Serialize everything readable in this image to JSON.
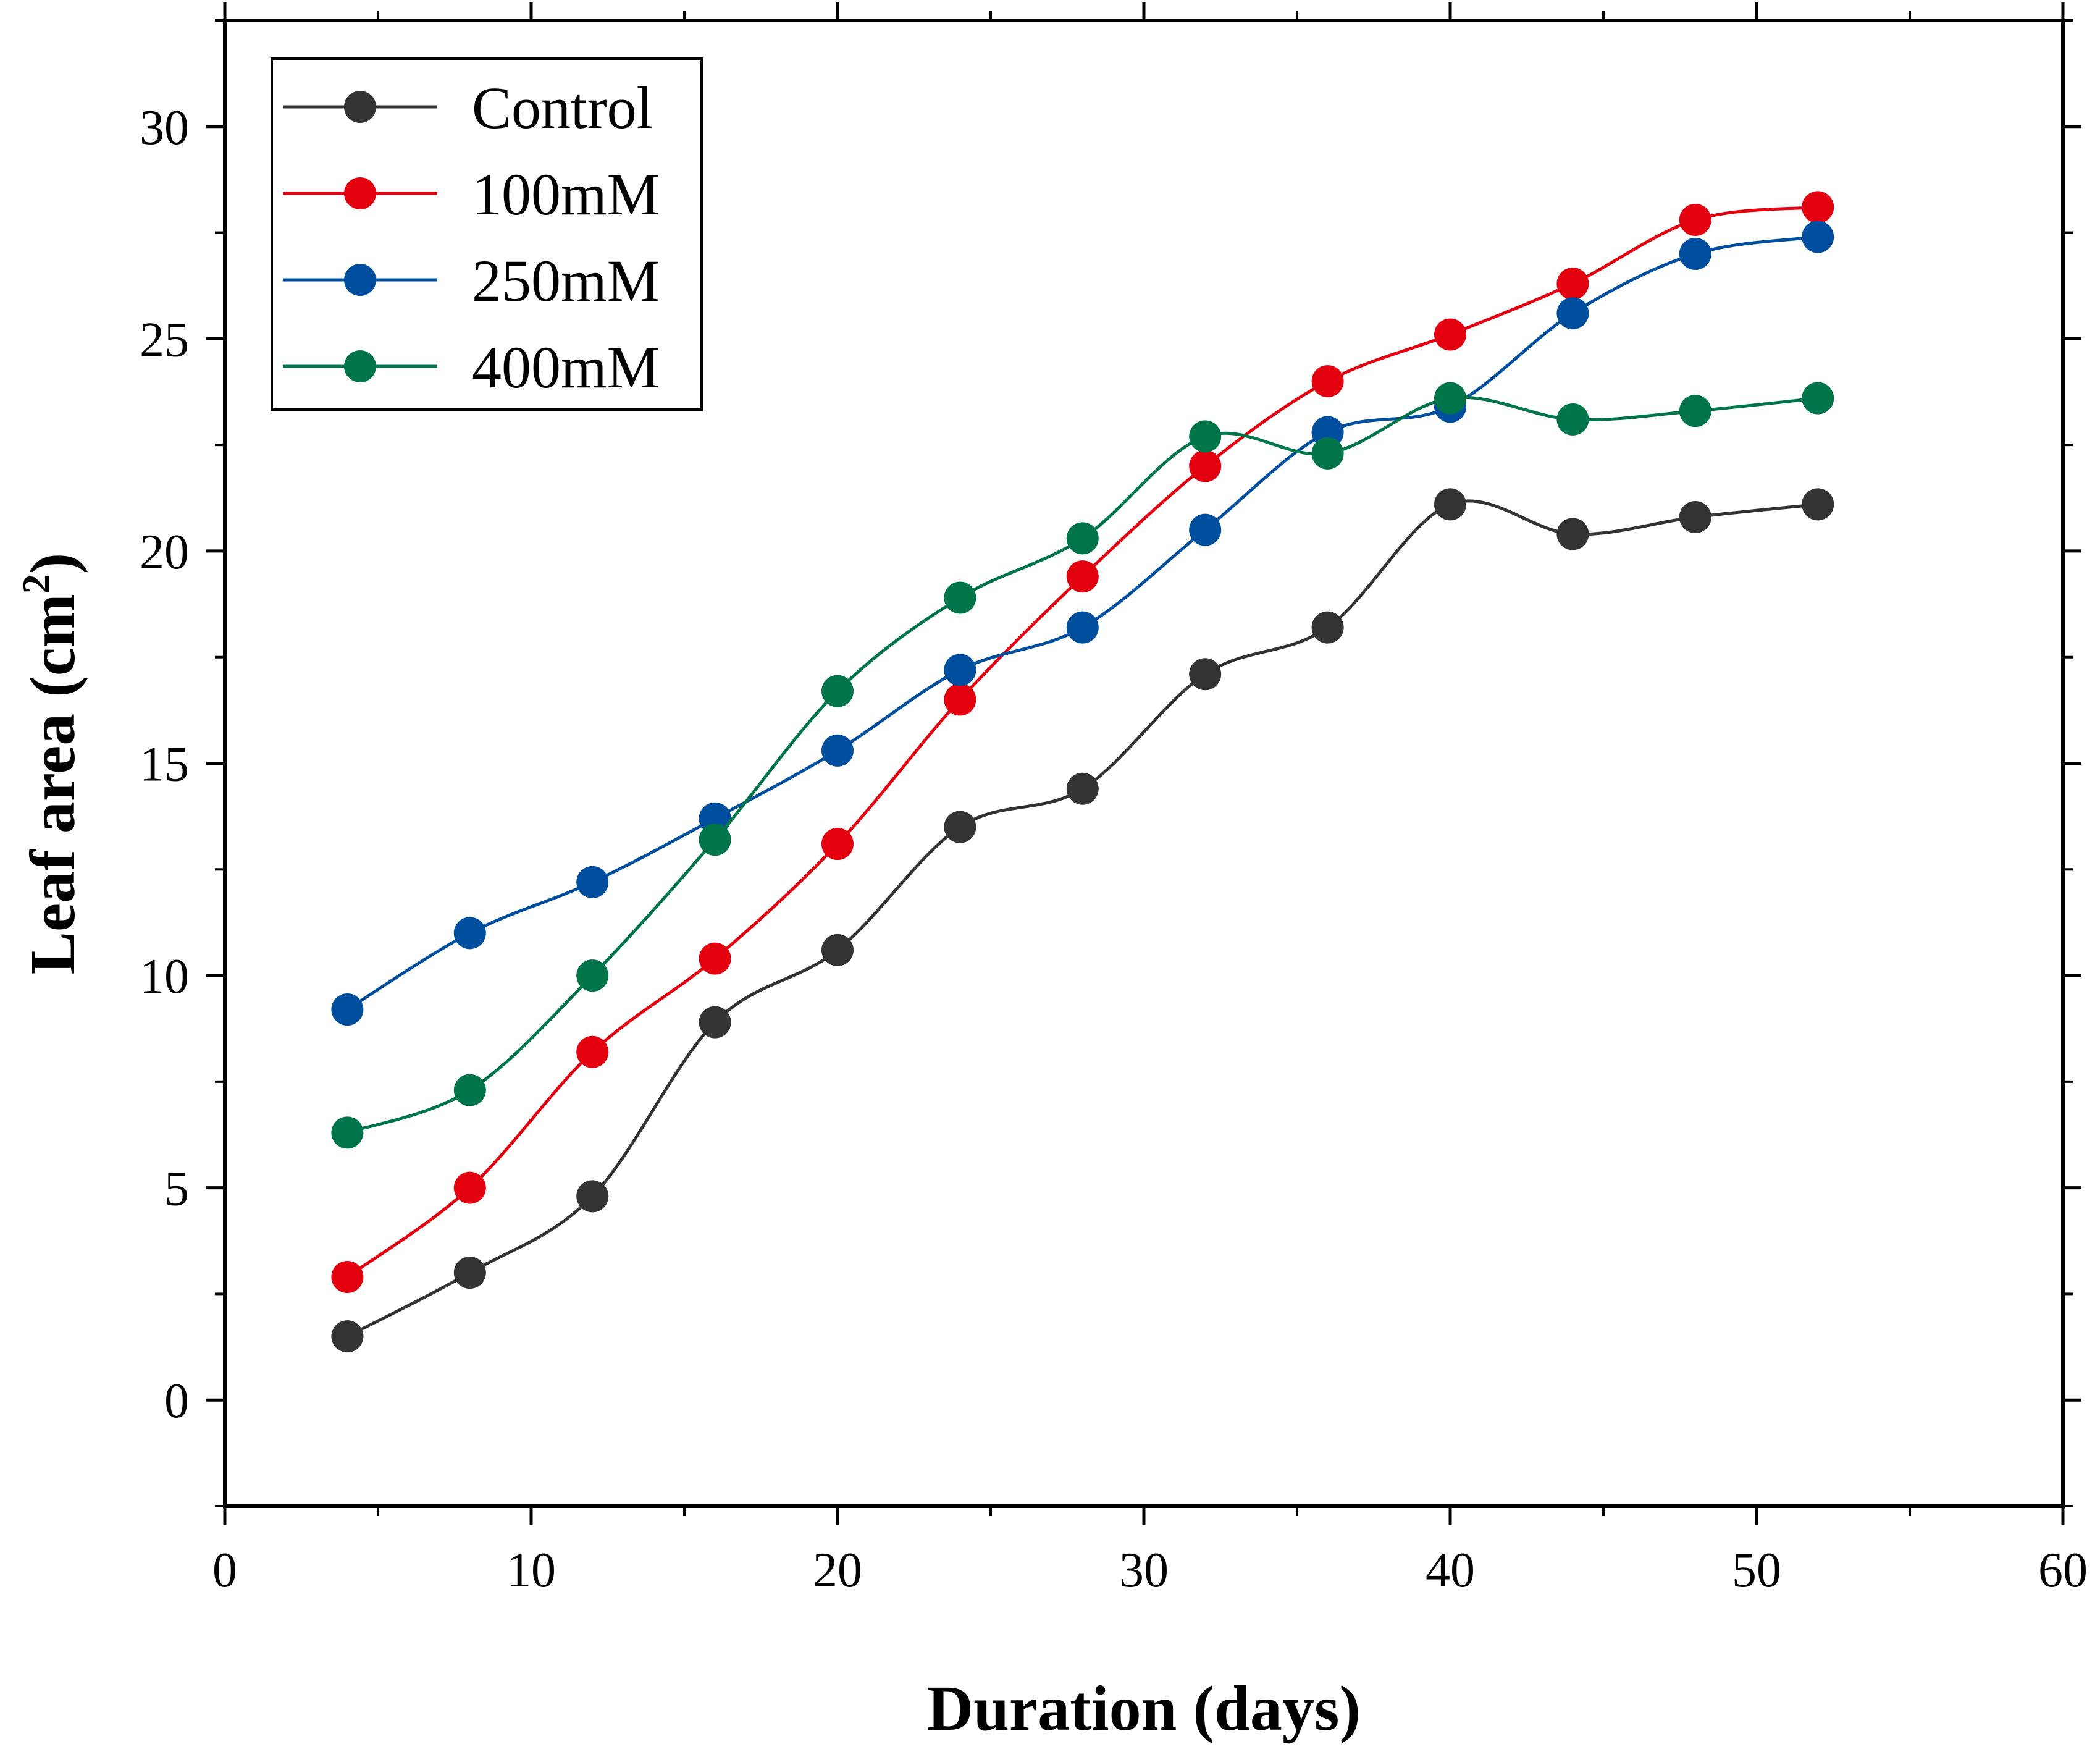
{
  "chart_data": {
    "type": "line",
    "title": "",
    "xlabel": "Duration (days)",
    "ylabel_main": "Leaf area (cm",
    "ylabel_sup": "2",
    "ylabel_end": ")",
    "xlim": [
      0,
      60
    ],
    "ylim": [
      -2.5,
      32.5
    ],
    "xticks": [
      0,
      10,
      20,
      30,
      40,
      50,
      60
    ],
    "yticks": [
      0,
      5,
      10,
      15,
      20,
      25,
      30
    ],
    "grid": false,
    "legend_position": "top-left",
    "x": [
      4,
      8,
      12,
      16,
      20,
      24,
      28,
      32,
      36,
      40,
      44,
      48,
      52
    ],
    "series": [
      {
        "name": "Control",
        "color": "#333333",
        "values": [
          1.5,
          3.0,
          4.8,
          8.9,
          10.6,
          13.5,
          14.4,
          17.1,
          18.2,
          21.1,
          20.4,
          20.8,
          21.1
        ]
      },
      {
        "name": "100mM",
        "color": "#e3000f",
        "values": [
          2.9,
          5.0,
          8.2,
          10.4,
          13.1,
          16.5,
          19.4,
          22.0,
          24.0,
          25.1,
          26.3,
          27.8,
          28.1
        ]
      },
      {
        "name": "250mM",
        "color": "#004e9e",
        "values": [
          9.2,
          11.0,
          12.2,
          13.7,
          15.3,
          17.2,
          18.2,
          20.5,
          22.8,
          23.4,
          25.6,
          27.0,
          27.4
        ]
      },
      {
        "name": "400mM",
        "color": "#00754a",
        "values": [
          6.3,
          7.3,
          10.0,
          13.2,
          16.7,
          18.9,
          20.3,
          22.7,
          22.3,
          23.6,
          23.1,
          23.3,
          23.6
        ]
      }
    ]
  }
}
